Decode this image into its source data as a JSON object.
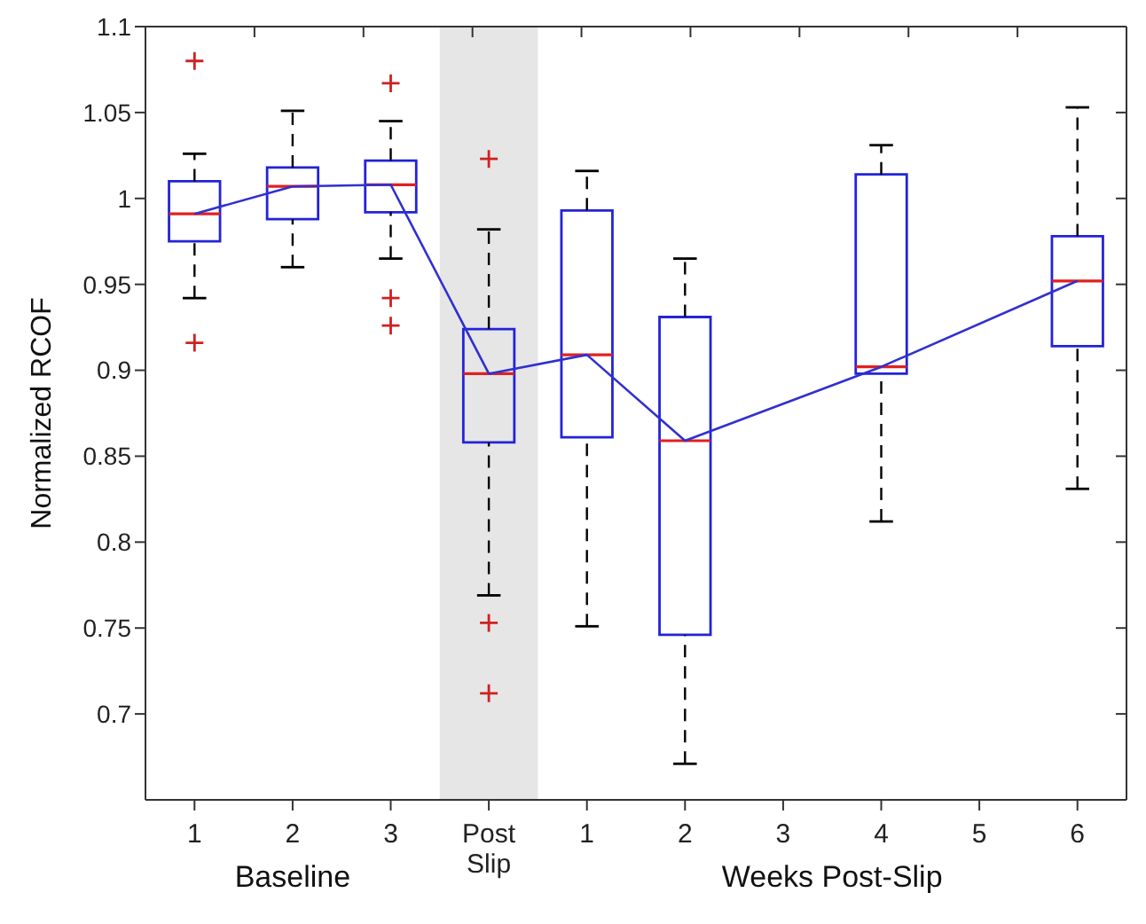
{
  "chart_data": {
    "type": "box",
    "ylabel": "Normalized RCOF",
    "categories": [
      "1",
      "2",
      "3",
      "Post Slip",
      "1",
      "2",
      "3",
      "4",
      "5",
      "6"
    ],
    "ylim": [
      0.65,
      1.1
    ],
    "yticks": [
      0.7,
      0.75,
      0.8,
      0.85,
      0.9,
      0.95,
      1,
      1.05,
      1.1
    ],
    "grid": false,
    "legend": false,
    "series": [
      {
        "color": "#2323d8",
        "boxes": [
          {
            "low": 0.942,
            "q1": 0.975,
            "median": 0.991,
            "q3": 1.01,
            "high": 1.026,
            "outliers": [
              1.08,
              0.916
            ]
          },
          {
            "low": 0.96,
            "q1": 0.988,
            "median": 1.007,
            "q3": 1.018,
            "high": 1.051
          },
          {
            "low": 0.965,
            "q1": 0.992,
            "median": 1.008,
            "q3": 1.022,
            "high": 1.045,
            "outliers": [
              1.067,
              0.942,
              0.926
            ]
          },
          {
            "low": 0.769,
            "q1": 0.858,
            "median": 0.898,
            "q3": 0.924,
            "high": 0.982,
            "outliers": [
              1.023,
              0.753,
              0.712
            ]
          },
          {
            "low": 0.751,
            "q1": 0.861,
            "median": 0.909,
            "q3": 0.993,
            "high": 1.016
          },
          {
            "low": 0.671,
            "q1": 0.746,
            "median": 0.859,
            "q3": 0.931,
            "high": 0.965
          },
          null,
          {
            "low": 0.812,
            "q1": 0.898,
            "median": 0.902,
            "q3": 1.014,
            "high": 1.031
          },
          null,
          {
            "low": 0.831,
            "q1": 0.914,
            "median": 0.952,
            "q3": 0.978,
            "high": 1.053
          }
        ]
      },
      {
        "type": "line",
        "color": "#3030d0",
        "values": [
          0.991,
          1.007,
          1.008,
          0.898,
          0.909,
          0.859,
          null,
          0.902,
          null,
          0.952
        ]
      }
    ],
    "bands": [
      {
        "axis": "x",
        "from": "Post Slip",
        "to": "Post Slip",
        "color": "#e6e6e6"
      }
    ],
    "annotations": [
      "Baseline",
      "Weeks Post-Slip"
    ]
  }
}
